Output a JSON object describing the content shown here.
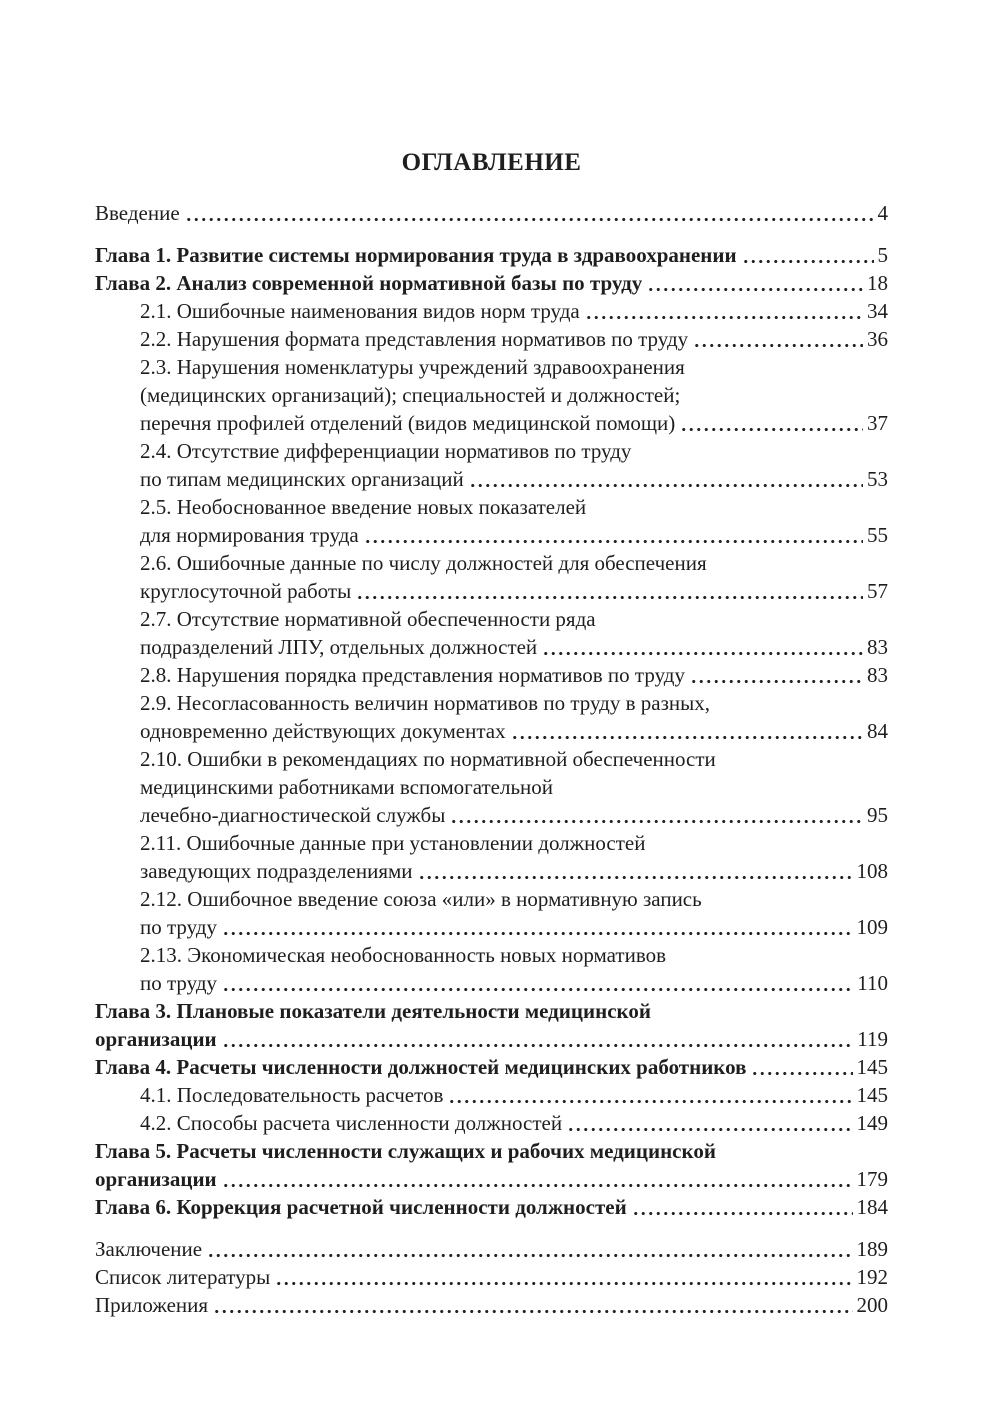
{
  "title": "ОГЛАВЛЕНИЕ",
  "colors": {
    "text": "#1e1e1e",
    "background": "#ffffff"
  },
  "toc": {
    "entries": [
      {
        "lines": [
          "Введение"
        ],
        "page": "4",
        "bold": false,
        "indent": 0,
        "gap_before": false
      },
      {
        "lines": [
          "Глава 1. Развитие системы нормирования труда в здравоохранении"
        ],
        "page": "5",
        "bold": true,
        "indent": 0,
        "gap_before": true
      },
      {
        "lines": [
          "Глава 2. Анализ современной нормативной базы по труду"
        ],
        "page": "18",
        "bold": true,
        "indent": 0,
        "gap_before": false
      },
      {
        "lines": [
          "2.1. Ошибочные наименования видов норм труда"
        ],
        "page": "34",
        "bold": false,
        "indent": 1,
        "gap_before": false
      },
      {
        "lines": [
          "2.2. Нарушения формата представления нормативов по труду"
        ],
        "page": "36",
        "bold": false,
        "indent": 1,
        "gap_before": false
      },
      {
        "lines": [
          "2.3. Нарушения номенклатуры учреждений здравоохранения",
          "(медицинских организаций); специальностей и должностей;",
          "перечня профилей отделений (видов медицинской помощи)"
        ],
        "page": "37",
        "bold": false,
        "indent": 1,
        "gap_before": false
      },
      {
        "lines": [
          "2.4. Отсутствие дифференциации нормативов по труду",
          "по типам медицинских организаций"
        ],
        "page": "53",
        "bold": false,
        "indent": 1,
        "gap_before": false
      },
      {
        "lines": [
          "2.5. Необоснованное введение новых показателей",
          "для нормирования труда"
        ],
        "page": "55",
        "bold": false,
        "indent": 1,
        "gap_before": false
      },
      {
        "lines": [
          "2.6. Ошибочные данные по числу должностей для обеспечения",
          "круглосуточной работы"
        ],
        "page": "57",
        "bold": false,
        "indent": 1,
        "gap_before": false
      },
      {
        "lines": [
          "2.7. Отсутствие нормативной обеспеченности ряда",
          "подразделений ЛПУ, отдельных должностей"
        ],
        "page": "83",
        "bold": false,
        "indent": 1,
        "gap_before": false
      },
      {
        "lines": [
          "2.8. Нарушения порядка представления нормативов по труду"
        ],
        "page": "83",
        "bold": false,
        "indent": 1,
        "gap_before": false
      },
      {
        "lines": [
          "2.9. Несогласованность величин нормативов по труду в разных,",
          "одновременно действующих документах"
        ],
        "page": "84",
        "bold": false,
        "indent": 1,
        "gap_before": false
      },
      {
        "lines": [
          "2.10. Ошибки в рекомендациях по нормативной обеспеченности",
          "медицинскими работниками вспомогательной",
          "лечебно-диагностической службы"
        ],
        "page": "95",
        "bold": false,
        "indent": 1,
        "gap_before": false
      },
      {
        "lines": [
          "2.11. Ошибочные данные при установлении должностей",
          "заведующих подразделениями"
        ],
        "page": "108",
        "bold": false,
        "indent": 1,
        "gap_before": false
      },
      {
        "lines": [
          "2.12. Ошибочное введение союза «или» в нормативную запись",
          "по труду"
        ],
        "page": "109",
        "bold": false,
        "indent": 1,
        "gap_before": false
      },
      {
        "lines": [
          "2.13. Экономическая необоснованность новых нормативов",
          "по труду"
        ],
        "page": "110",
        "bold": false,
        "indent": 1,
        "gap_before": false
      },
      {
        "lines": [
          "Глава 3. Плановые показатели деятельности медицинской",
          "организации"
        ],
        "page": "119",
        "bold": true,
        "indent": 0,
        "gap_before": false
      },
      {
        "lines": [
          "Глава 4. Расчеты численности должностей медицинских работников"
        ],
        "page": "145",
        "bold": true,
        "indent": 0,
        "gap_before": false
      },
      {
        "lines": [
          "4.1. Последовательность расчетов"
        ],
        "page": "145",
        "bold": false,
        "indent": 1,
        "gap_before": false
      },
      {
        "lines": [
          "4.2. Способы расчета численности должностей"
        ],
        "page": "149",
        "bold": false,
        "indent": 1,
        "gap_before": false
      },
      {
        "lines": [
          "Глава 5. Расчеты численности служащих и рабочих медицинской",
          "организации"
        ],
        "page": "179",
        "bold": true,
        "indent": 0,
        "gap_before": false
      },
      {
        "lines": [
          "Глава 6. Коррекция расчетной численности должностей"
        ],
        "page": "184",
        "bold": true,
        "indent": 0,
        "gap_before": false
      },
      {
        "lines": [
          "Заключение"
        ],
        "page": "189",
        "bold": false,
        "indent": 0,
        "gap_before": true
      },
      {
        "lines": [
          "Список литературы"
        ],
        "page": "192",
        "bold": false,
        "indent": 0,
        "gap_before": false
      },
      {
        "lines": [
          "Приложения"
        ],
        "page": "200",
        "bold": false,
        "indent": 0,
        "gap_before": false
      }
    ]
  }
}
